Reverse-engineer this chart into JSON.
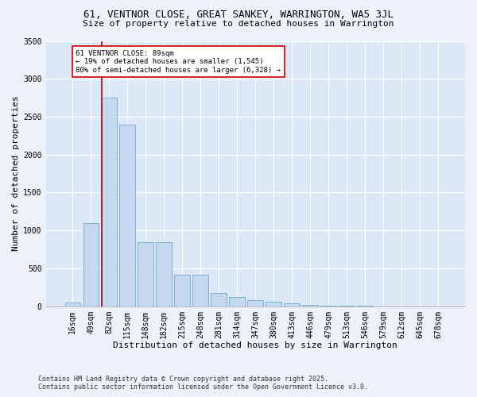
{
  "title_line1": "61, VENTNOR CLOSE, GREAT SANKEY, WARRINGTON, WA5 3JL",
  "title_line2": "Size of property relative to detached houses in Warrington",
  "xlabel": "Distribution of detached houses by size in Warrington",
  "ylabel": "Number of detached properties",
  "categories": [
    "16sqm",
    "49sqm",
    "82sqm",
    "115sqm",
    "148sqm",
    "182sqm",
    "215sqm",
    "248sqm",
    "281sqm",
    "314sqm",
    "347sqm",
    "380sqm",
    "413sqm",
    "446sqm",
    "479sqm",
    "513sqm",
    "546sqm",
    "579sqm",
    "612sqm",
    "645sqm",
    "678sqm"
  ],
  "values": [
    50,
    1100,
    2750,
    2400,
    850,
    850,
    420,
    420,
    175,
    120,
    80,
    55,
    35,
    15,
    8,
    5,
    3,
    2,
    1,
    1,
    1
  ],
  "bar_color": "#c5d8f0",
  "bar_edge_color": "#6aaad4",
  "vline_color": "#aa0000",
  "vline_x_index": 2,
  "annotation_text": "61 VENTNOR CLOSE: 89sqm\n← 19% of detached houses are smaller (1,545)\n80% of semi-detached houses are larger (6,328) →",
  "annotation_box_color": "#ffffff",
  "annotation_box_edge": "#cc0000",
  "ylim": [
    0,
    3500
  ],
  "yticks": [
    0,
    500,
    1000,
    1500,
    2000,
    2500,
    3000,
    3500
  ],
  "footer_line1": "Contains HM Land Registry data © Crown copyright and database right 2025.",
  "footer_line2": "Contains public sector information licensed under the Open Government Licence v3.0.",
  "bg_color": "#edf2fa",
  "plot_bg_color": "#dce8f5",
  "grid_color": "#ffffff",
  "title_fontsize": 9,
  "subtitle_fontsize": 8,
  "ylabel_fontsize": 8,
  "xlabel_fontsize": 8,
  "tick_fontsize": 7,
  "footer_fontsize": 6
}
